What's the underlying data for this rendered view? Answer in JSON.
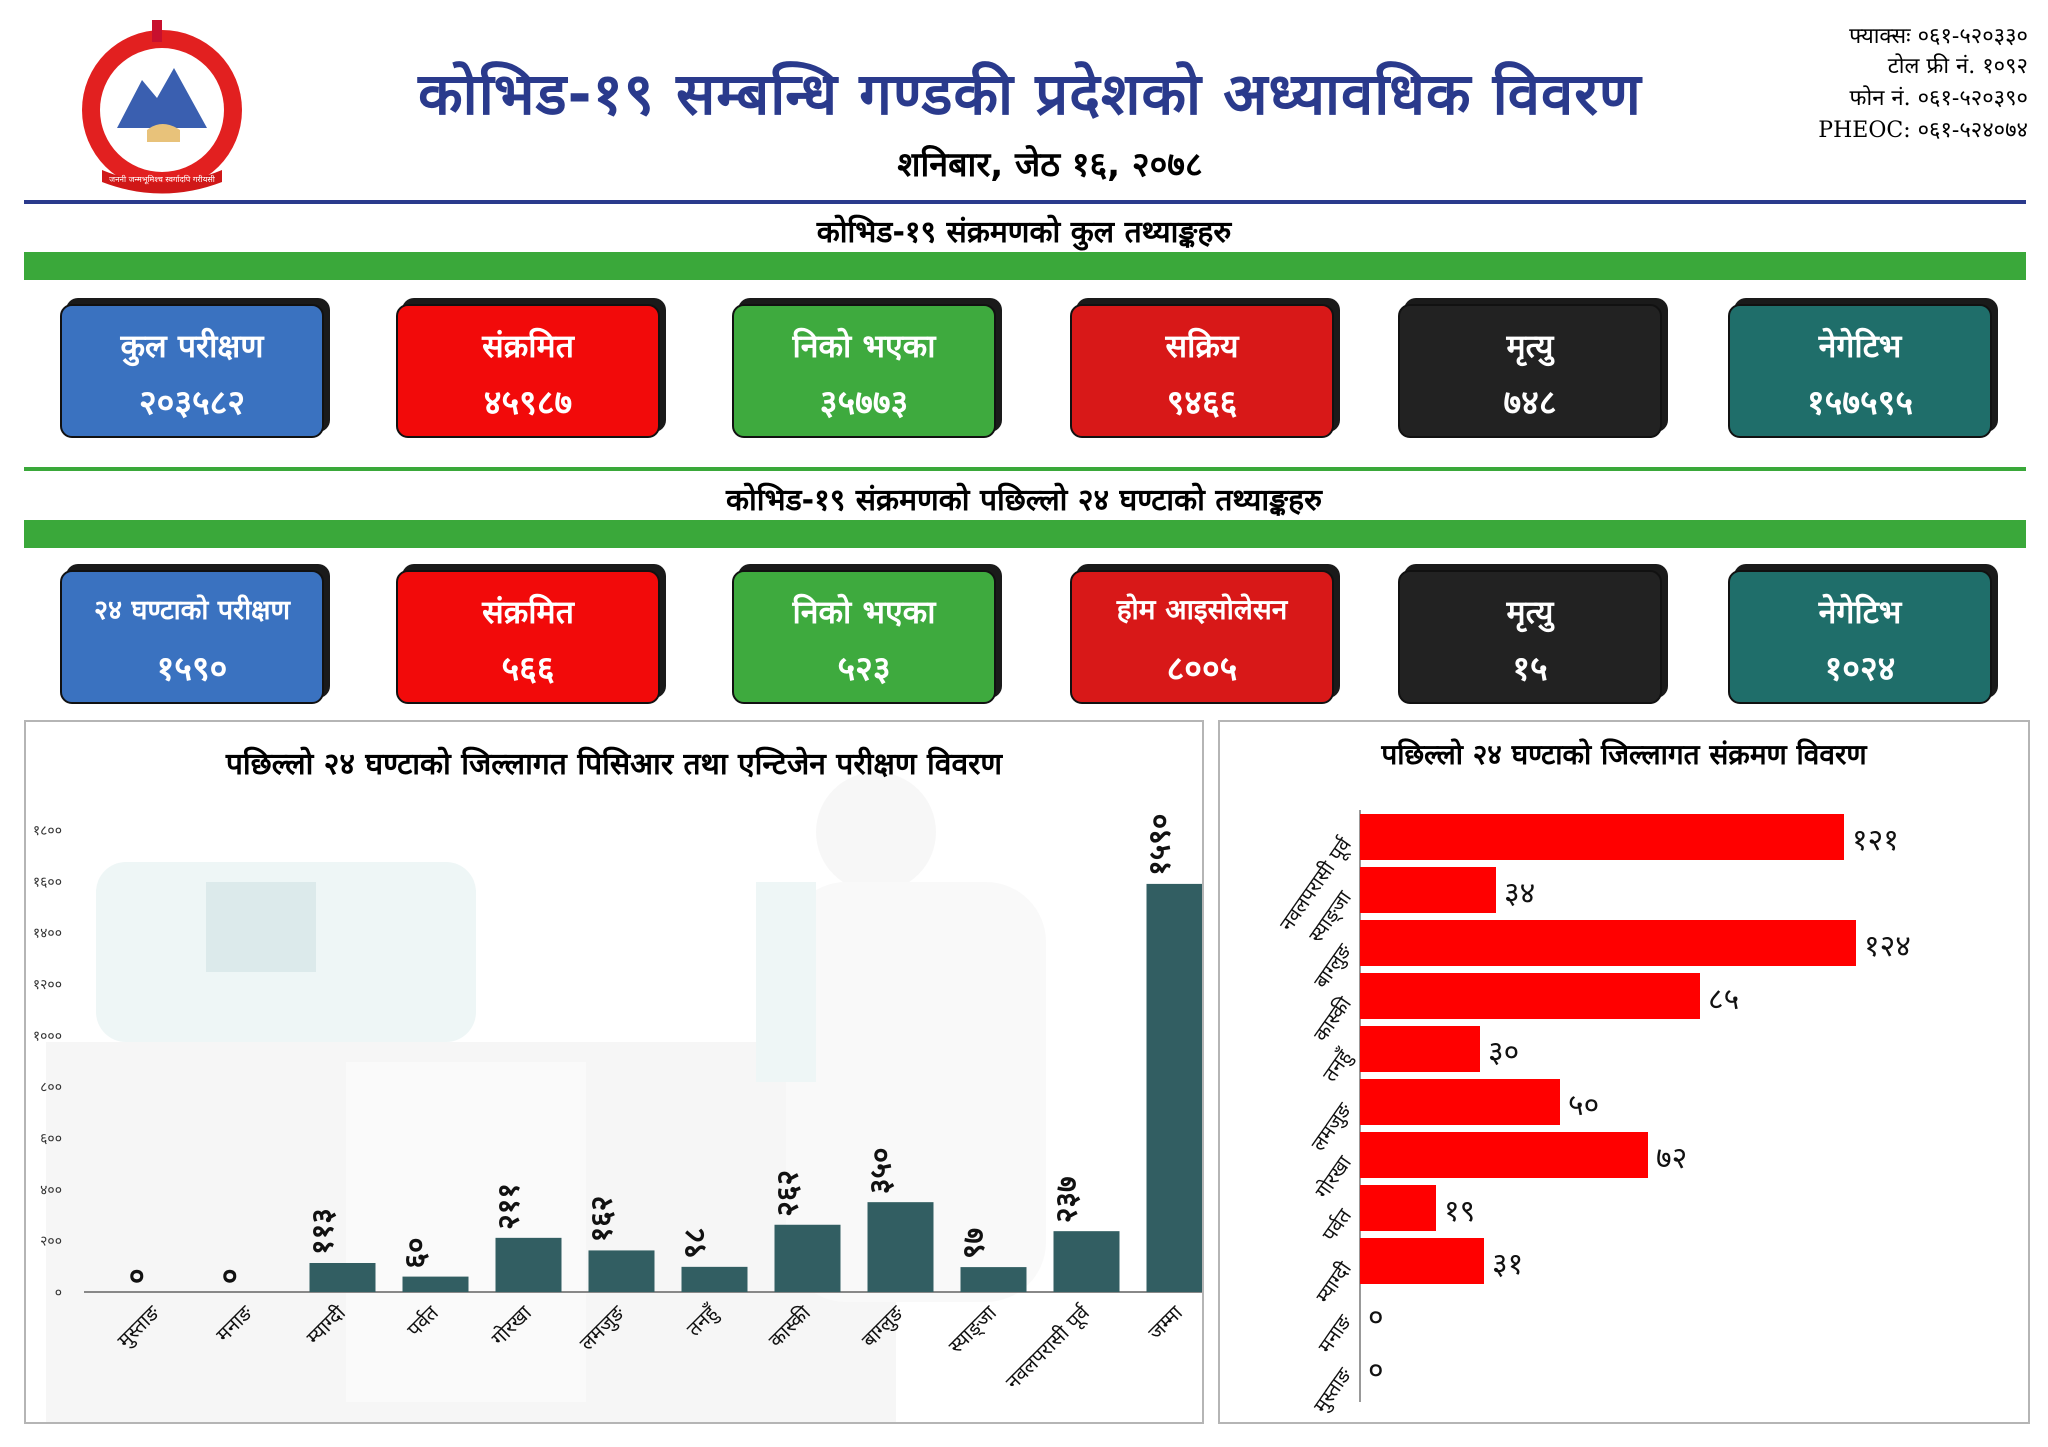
{
  "header": {
    "title": "कोभिड-१९ सम्बन्धि गण्डकी प्रदेशको अध्यावधिक विवरण",
    "date": "शनिबार, जेठ १६, २०७८",
    "contacts": {
      "fax": "फ्याक्सः ०६१-५२०३३०",
      "toll_free": "टोल फ्री नं. १०९२",
      "phone": "फोन नं. ०६१-५२०३९०",
      "pheoc": "PHEOC: ०६१-५२४०७४"
    },
    "emblem_text": "जननी जन्मभूमिश्च स्वर्गादपि गरीयसी"
  },
  "colors": {
    "title_blue": "#2a3a8c",
    "green": "#3aa83a",
    "bar_teal": "#325e62",
    "bar_red": "#ff0000"
  },
  "section_total": {
    "title": "कोभिड-१९ संक्रमणको कुल तथ्याङ्कहरु",
    "cards": [
      {
        "label": "कुल परीक्षण",
        "value": "२०३५८२"
      },
      {
        "label": "संक्रमित",
        "value": "४५९८७"
      },
      {
        "label": "निको भएका",
        "value": "३५७७३"
      },
      {
        "label": "सक्रिय",
        "value": "९४६६"
      },
      {
        "label": "मृत्यु",
        "value": "७४८"
      },
      {
        "label": "नेगेटिभ",
        "value": "१५७५९५"
      }
    ]
  },
  "section_24h": {
    "title": "कोभिड-१९ संक्रमणको पछिल्लो २४ घण्टाको तथ्याङ्कहरु",
    "cards": [
      {
        "label": "२४ घण्टाको परीक्षण",
        "value": "१५९०"
      },
      {
        "label": "संक्रमित",
        "value": "५६६"
      },
      {
        "label": "निको भएका",
        "value": "५२३"
      },
      {
        "label": "होम आइसोलेसन",
        "value": "८००५"
      },
      {
        "label": "मृत्यु",
        "value": "१५"
      },
      {
        "label": "नेगेटिभ",
        "value": "१०२४"
      }
    ]
  },
  "chart_data": [
    {
      "type": "bar",
      "title": "पछिल्लो २४ घण्टाको जिल्लागत पिसिआर तथा एन्टिजेन परीक्षण विवरण",
      "categories": [
        "मुस्ताङ",
        "मनाङ",
        "म्याग्दी",
        "पर्वत",
        "गोरखा",
        "लमजुङ",
        "तनहुँ",
        "कास्की",
        "बाग्लुङ",
        "स्याङ्जा",
        "नवलपरासी पूर्व",
        "जम्मा"
      ],
      "values": [
        0,
        0,
        113,
        60,
        211,
        162,
        98,
        262,
        350,
        97,
        237,
        1590
      ],
      "value_labels": [
        "०",
        "०",
        "११३",
        "६०",
        "२११",
        "१६२",
        "९८",
        "२६२",
        "३५०",
        "९७",
        "२३७",
        "१५९०"
      ],
      "yticks": [
        0,
        200,
        400,
        600,
        800,
        1000,
        1200,
        1400,
        1600,
        1800
      ],
      "ytick_labels": [
        "०",
        "२००",
        "४००",
        "६००",
        "८००",
        "१०००",
        "१२००",
        "१४००",
        "१६००",
        "१८००"
      ],
      "ylim": [
        0,
        1800
      ],
      "xlabel": "",
      "ylabel": ""
    },
    {
      "type": "bar",
      "orientation": "horizontal",
      "title": "पछिल्लो २४ घण्टाको जिल्लागत संक्रमण विवरण",
      "categories": [
        "नवलपरासी पूर्व",
        "स्याङ्जा",
        "बाग्लुङ",
        "कास्की",
        "तनहुँ",
        "लमजुङ",
        "गोरखा",
        "पर्वत",
        "म्याग्दी",
        "मनाङ",
        "मुस्ताङ"
      ],
      "values": [
        121,
        34,
        124,
        85,
        30,
        50,
        72,
        19,
        31,
        0,
        0
      ],
      "value_labels": [
        "१२१",
        "३४",
        "१२४",
        "८५",
        "३०",
        "५०",
        "७२",
        "१९",
        "३१",
        "०",
        "०"
      ],
      "xlim": [
        0,
        140
      ]
    }
  ]
}
